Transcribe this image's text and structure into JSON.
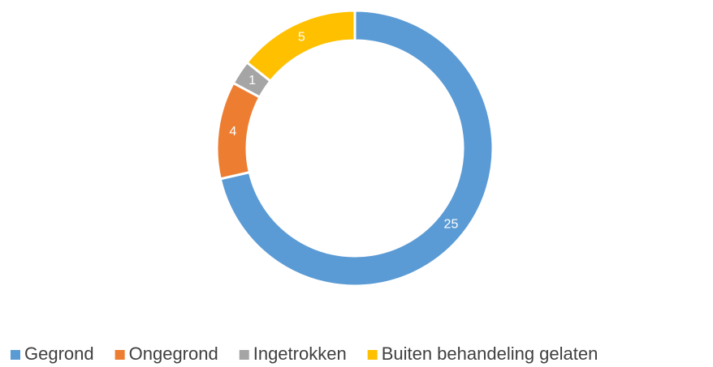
{
  "chart_data": {
    "type": "donut",
    "categories": [
      "Gegrond",
      "Ongegrond",
      "Ingetrokken",
      "Buiten behandeling gelaten"
    ],
    "values": [
      25,
      4,
      1,
      5
    ],
    "colors": [
      "#5b9bd5",
      "#ed7d31",
      "#a5a5a5",
      "#ffc000"
    ],
    "legend": "bottom"
  }
}
